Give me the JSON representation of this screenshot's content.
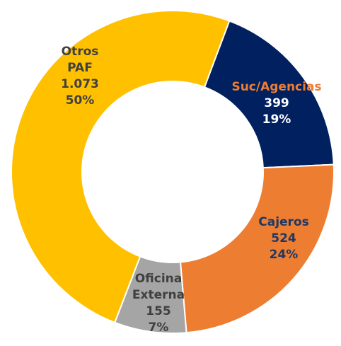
{
  "chart_data": {
    "type": "donut",
    "categories": [
      "Suc/Agencias",
      "Cajeros",
      "Oficina Externa",
      "Otros PAF"
    ],
    "values": [
      399,
      524,
      155,
      1073
    ],
    "value_labels": [
      "399",
      "524",
      "155",
      "1.073"
    ],
    "percents": [
      19,
      24,
      7,
      50
    ],
    "percent_labels": [
      "19%",
      "24%",
      "7%",
      "50%"
    ],
    "colors": [
      "#002060",
      "#ed7d31",
      "#a5a5a5",
      "#ffc000"
    ]
  }
}
